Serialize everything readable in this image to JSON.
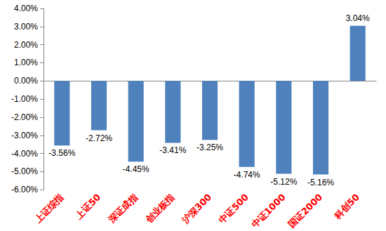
{
  "chart_data": {
    "type": "bar",
    "categories": [
      "上证综指",
      "上证50",
      "深证成指",
      "创业板指",
      "沪深300",
      "中证500",
      "中证1000",
      "国证2000",
      "科创50"
    ],
    "values": [
      -3.56,
      -2.72,
      -4.45,
      -3.41,
      -3.25,
      -4.74,
      -5.12,
      -5.16,
      3.04
    ],
    "value_labels": [
      "-3.56%",
      "-2.72%",
      "-4.45%",
      "-3.41%",
      "-3.25%",
      "-4.74%",
      "-5.12%",
      "-5.16%",
      "3.04%"
    ],
    "data_labels": true,
    "color": "#4f81bd",
    "ylim": [
      -6,
      4
    ],
    "yticks": [
      {
        "value": -6,
        "label": "-6.00%"
      },
      {
        "value": -5,
        "label": "-5.00%"
      },
      {
        "value": -4,
        "label": "-4.00%"
      },
      {
        "value": -3,
        "label": "-3.00%"
      },
      {
        "value": -2,
        "label": "-2.00%"
      },
      {
        "value": -1,
        "label": "-1.00%"
      },
      {
        "value": 0,
        "label": "0.00%"
      },
      {
        "value": 1,
        "label": "1.00%"
      },
      {
        "value": 2,
        "label": "2.00%"
      },
      {
        "value": 3,
        "label": "3.00%"
      },
      {
        "value": 4,
        "label": "4.00%"
      }
    ],
    "grid": false
  }
}
